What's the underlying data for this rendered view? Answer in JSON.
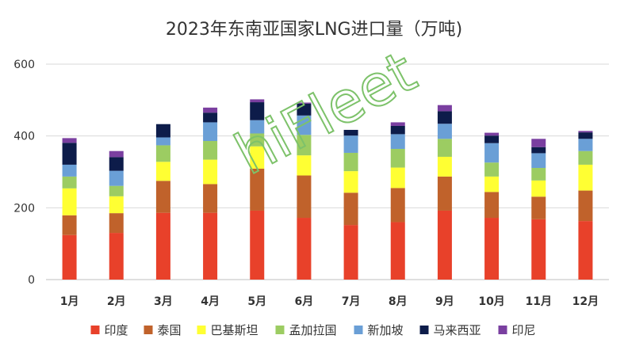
{
  "chart_data": {
    "type": "bar",
    "stacked": true,
    "title": "2023年东南亚国家LNG进口量（万吨)",
    "xlabel": "",
    "ylabel": "",
    "ylim": [
      0,
      600
    ],
    "yticks": [
      0,
      200,
      400,
      600
    ],
    "grid": true,
    "legend_position": "bottom",
    "categories": [
      "1月",
      "2月",
      "3月",
      "4月",
      "5月",
      "6月",
      "7月",
      "8月",
      "9月",
      "10月",
      "11月",
      "12月"
    ],
    "series": [
      {
        "name": "印度",
        "color": "#e8412a",
        "values": [
          124,
          130,
          186,
          186,
          192,
          172,
          152,
          160,
          192,
          172,
          168,
          163
        ]
      },
      {
        "name": "泰国",
        "color": "#c0622b",
        "values": [
          55,
          55,
          89,
          80,
          117,
          118,
          90,
          95,
          95,
          72,
          63,
          85
        ]
      },
      {
        "name": "巴基斯坦",
        "color": "#ffff33",
        "values": [
          75,
          47,
          53,
          68,
          62,
          56,
          60,
          57,
          55,
          43,
          45,
          72
        ]
      },
      {
        "name": "孟加拉国",
        "color": "#9ccc62",
        "values": [
          33,
          29,
          46,
          52,
          36,
          57,
          51,
          52,
          50,
          39,
          35,
          38
        ]
      },
      {
        "name": "新加坡",
        "color": "#6a9fd6",
        "values": [
          33,
          42,
          22,
          52,
          37,
          54,
          48,
          41,
          42,
          54,
          41,
          34
        ]
      },
      {
        "name": "马来西亚",
        "color": "#0d1c4a",
        "values": [
          61,
          38,
          37,
          27,
          50,
          33,
          16,
          23,
          35,
          21,
          17,
          18
        ]
      },
      {
        "name": "印尼",
        "color": "#7a3fa0",
        "values": [
          13,
          17,
          0,
          14,
          8,
          3,
          0,
          10,
          17,
          8,
          23,
          4
        ]
      }
    ]
  },
  "watermark": "hiFleet"
}
